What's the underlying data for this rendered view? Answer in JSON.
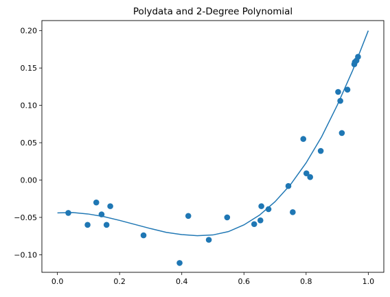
{
  "chart_data": {
    "type": "scatter",
    "title": "Polydata and 2-Degree Polynomial",
    "xlabel": "",
    "ylabel": "",
    "xlim": [
      -0.05,
      1.05
    ],
    "ylim": [
      -0.1235,
      0.2135
    ],
    "grid": false,
    "x_ticks": [
      {
        "value": 0.0,
        "label": "0.0"
      },
      {
        "value": 0.2,
        "label": "0.2"
      },
      {
        "value": 0.4,
        "label": "0.4"
      },
      {
        "value": 0.6,
        "label": "0.6"
      },
      {
        "value": 0.8,
        "label": "0.8"
      },
      {
        "value": 1.0,
        "label": "1.0"
      }
    ],
    "y_ticks": [
      {
        "value": -0.1,
        "label": "−0.10"
      },
      {
        "value": -0.05,
        "label": "−0.05"
      },
      {
        "value": 0.0,
        "label": "0.00"
      },
      {
        "value": 0.05,
        "label": "0.05"
      },
      {
        "value": 0.1,
        "label": "0.10"
      },
      {
        "value": 0.15,
        "label": "0.15"
      },
      {
        "value": 0.2,
        "label": "0.20"
      }
    ],
    "colors": {
      "series": "#1f77b4"
    },
    "series": [
      {
        "kind": "scatter",
        "points": [
          [
            0.035,
            -0.044
          ],
          [
            0.097,
            -0.06
          ],
          [
            0.125,
            -0.03
          ],
          [
            0.142,
            -0.046
          ],
          [
            0.158,
            -0.06
          ],
          [
            0.17,
            -0.035
          ],
          [
            0.277,
            -0.074
          ],
          [
            0.393,
            -0.111
          ],
          [
            0.421,
            -0.048
          ],
          [
            0.487,
            -0.08
          ],
          [
            0.546,
            -0.05
          ],
          [
            0.633,
            -0.059
          ],
          [
            0.653,
            -0.054
          ],
          [
            0.656,
            -0.035
          ],
          [
            0.679,
            -0.039
          ],
          [
            0.743,
            -0.008
          ],
          [
            0.757,
            -0.043
          ],
          [
            0.791,
            0.055
          ],
          [
            0.801,
            0.009
          ],
          [
            0.813,
            0.004
          ],
          [
            0.847,
            0.039
          ],
          [
            0.903,
            0.118
          ],
          [
            0.91,
            0.106
          ],
          [
            0.915,
            0.063
          ],
          [
            0.933,
            0.121
          ],
          [
            0.955,
            0.155
          ],
          [
            0.957,
            0.158
          ],
          [
            0.962,
            0.16
          ],
          [
            0.967,
            0.165
          ]
        ]
      },
      {
        "kind": "line",
        "x": [
          0.0,
          0.05,
          0.1,
          0.15,
          0.2,
          0.25,
          0.3,
          0.35,
          0.4,
          0.45,
          0.5,
          0.55,
          0.6,
          0.65,
          0.7,
          0.75,
          0.8,
          0.85,
          0.9,
          0.95,
          1.0
        ],
        "y": [
          -0.044,
          -0.0435,
          -0.0455,
          -0.049,
          -0.054,
          -0.0595,
          -0.065,
          -0.07,
          -0.073,
          -0.0745,
          -0.0735,
          -0.069,
          -0.06,
          -0.047,
          -0.029,
          -0.006,
          0.023,
          0.058,
          0.1,
          0.147,
          0.2
        ]
      }
    ]
  }
}
